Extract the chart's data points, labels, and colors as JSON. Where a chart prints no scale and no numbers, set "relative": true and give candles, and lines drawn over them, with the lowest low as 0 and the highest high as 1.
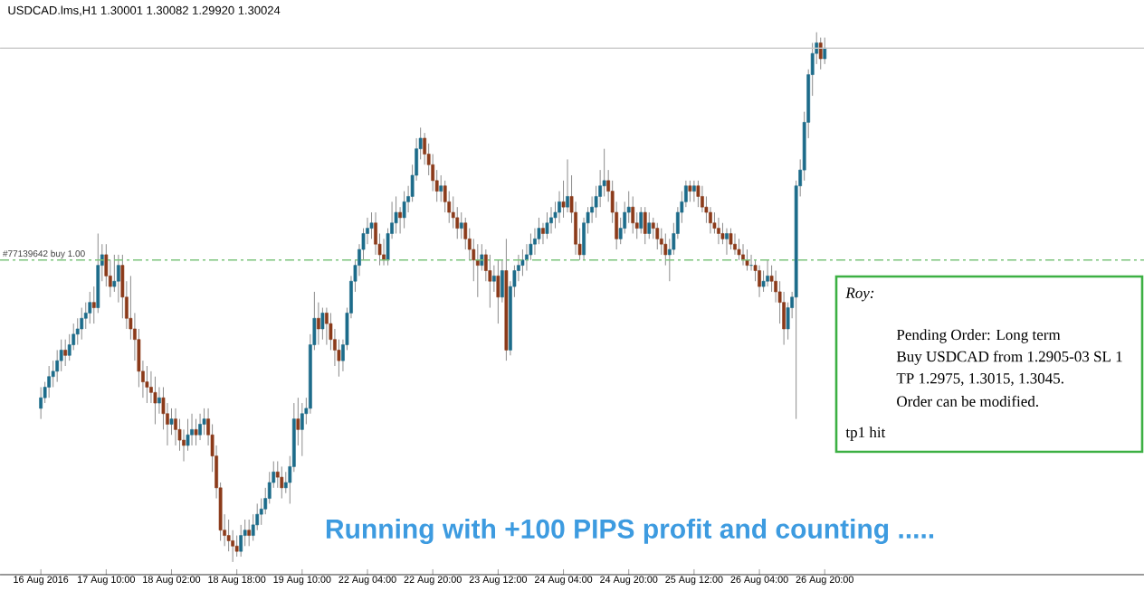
{
  "chart_data": {
    "type": "candlestick",
    "title": "USDCAD.lms,H1 1.30001 1.30082 1.29920 1.30024",
    "relative": true,
    "tick_labels": "x",
    "colors": [
      "#1c6b8a",
      "#1c6b8a",
      "#1c6b8a",
      "#1c6b8a",
      "#1c6b8a",
      "#1c6b8a",
      "#8b3a1a",
      "#1c6b8a",
      "#1c6b8a",
      "#1c6b8a",
      "#1c6b8a",
      "#1c6b8a",
      "#1c6b8a",
      "#8b3a1a",
      "#1c6b8a",
      "#1c6b8a",
      "#8b3a1a",
      "#8b3a1a",
      "#1c6b8a",
      "#1c6b8a",
      "#8b3a1a",
      "#8b3a1a",
      "#8b3a1a",
      "#8b3a1a",
      "#8b3a1a",
      "#8b3a1a",
      "#8b3a1a",
      "#8b3a1a",
      "#8b3a1a",
      "#1c6b8a",
      "#8b3a1a",
      "#8b3a1a",
      "#1c6b8a",
      "#8b3a1a",
      "#8b3a1a",
      "#8b3a1a",
      "#1c6b8a",
      "#1c6b8a",
      "#8b3a1a",
      "#1c6b8a",
      "#1c6b8a",
      "#8b3a1a",
      "#8b3a1a",
      "#8b3a1a",
      "#8b3a1a",
      "#8b3a1a",
      "#8b3a1a",
      "#8b3a1a",
      "#8b3a1a",
      "#1c6b8a",
      "#1c6b8a",
      "#8b3a1a",
      "#1c6b8a",
      "#1c6b8a",
      "#1c6b8a",
      "#1c6b8a",
      "#1c6b8a",
      "#1c6b8a",
      "#8b3a1a",
      "#8b3a1a",
      "#1c6b8a",
      "#1c6b8a",
      "#1c6b8a",
      "#8b3a1a",
      "#1c6b8a",
      "#1c6b8a",
      "#1c6b8a",
      "#1c6b8a",
      "#8b3a1a",
      "#1c6b8a",
      "#8b3a1a",
      "#8b3a1a",
      "#8b3a1a",
      "#8b3a1a",
      "#1c6b8a",
      "#1c6b8a",
      "#1c6b8a",
      "#1c6b8a",
      "#1c6b8a",
      "#1c6b8a",
      "#1c6b8a",
      "#1c6b8a",
      "#8b3a1a",
      "#8b3a1a",
      "#8b3a1a",
      "#1c6b8a",
      "#1c6b8a",
      "#1c6b8a",
      "#8b3a1a",
      "#1c6b8a",
      "#1c6b8a",
      "#1c6b8a",
      "#1c6b8a",
      "#1c6b8a",
      "#8b3a1a",
      "#8b3a1a",
      "#8b3a1a",
      "#8b3a1a",
      "#1c6b8a",
      "#8b3a1a",
      "#8b3a1a",
      "#8b3a1a",
      "#8b3a1a",
      "#1c6b8a",
      "#8b3a1a",
      "#8b3a1a",
      "#8b3a1a",
      "#8b3a1a",
      "#1c6b8a",
      "#8b3a1a",
      "#8b3a1a",
      "#1c6b8a",
      "#8b3a1a",
      "#1c6b8a",
      "#8b3a1a",
      "#1c6b8a",
      "#1c6b8a",
      "#1c6b8a",
      "#1c6b8a",
      "#1c6b8a",
      "#1c6b8a",
      "#1c6b8a",
      "#1c6b8a",
      "#8b3a1a",
      "#1c6b8a",
      "#1c6b8a",
      "#1c6b8a",
      "#1c6b8a",
      "#8b3a1a",
      "#1c6b8a",
      "#8b3a1a",
      "#8b3a1a",
      "#8b3a1a",
      "#1c6b8a",
      "#1c6b8a",
      "#1c6b8a",
      "#1c6b8a",
      "#1c6b8a",
      "#1c6b8a",
      "#8b3a1a",
      "#8b3a1a",
      "#8b3a1a",
      "#1c6b8a",
      "#1c6b8a",
      "#1c6b8a",
      "#8b3a1a",
      "#8b3a1a",
      "#1c6b8a",
      "#8b3a1a",
      "#1c6b8a",
      "#8b3a1a",
      "#8b3a1a",
      "#8b3a1a",
      "#8b3a1a",
      "#1c6b8a",
      "#1c6b8a",
      "#1c6b8a",
      "#1c6b8a",
      "#1c6b8a",
      "#8b3a1a",
      "#1c6b8a",
      "#8b3a1a",
      "#8b3a1a",
      "#8b3a1a",
      "#8b3a1a",
      "#8b3a1a",
      "#8b3a1a",
      "#8b3a1a",
      "#1c6b8a",
      "#8b3a1a",
      "#8b3a1a",
      "#8b3a1a",
      "#8b3a1a",
      "#8b3a1a",
      "#1c6b8a",
      "#8b3a1a",
      "#8b3a1a",
      "#1c6b8a",
      "#1c6b8a",
      "#8b3a1a",
      "#8b3a1a",
      "#8b3a1a",
      "#8b3a1a",
      "#1c6b8a",
      "#1c6b8a",
      "#1c6b8a",
      "#1c6b8a",
      "#1c6b8a",
      "#1c6b8a",
      "#1c6b8a",
      "#1c6b8a",
      "#8b3a1a",
      "#1c6b8a"
    ],
    "categories": [
      "16 Aug 2016",
      null,
      null,
      null,
      null,
      null,
      null,
      null,
      null,
      null,
      null,
      null,
      null,
      null,
      null,
      null,
      "17 Aug 10:00",
      null,
      null,
      null,
      null,
      null,
      null,
      null,
      null,
      null,
      null,
      null,
      null,
      null,
      null,
      null,
      "18 Aug 02:00",
      null,
      null,
      null,
      null,
      null,
      null,
      null,
      null,
      null,
      null,
      null,
      null,
      null,
      null,
      null,
      "18 Aug 18:00",
      null,
      null,
      null,
      null,
      null,
      null,
      null,
      null,
      null,
      null,
      null,
      null,
      null,
      null,
      null,
      "19 Aug 10:00",
      null,
      null,
      null,
      null,
      null,
      null,
      null,
      null,
      null,
      null,
      null,
      null,
      null,
      null,
      null,
      "22 Aug 04:00",
      null,
      null,
      null,
      null,
      null,
      null,
      null,
      null,
      null,
      null,
      null,
      null,
      null,
      null,
      null,
      "22 Aug 20:00",
      null,
      null,
      null,
      null,
      null,
      null,
      null,
      null,
      null,
      null,
      null,
      null,
      null,
      null,
      null,
      "23 Aug 12:00",
      null,
      null,
      null,
      null,
      null,
      null,
      null,
      null,
      null,
      null,
      null,
      null,
      null,
      null,
      null,
      "24 Aug 04:00",
      null,
      null,
      null,
      null,
      null,
      null,
      null,
      null,
      null,
      null,
      null,
      null,
      null,
      null,
      null,
      "24 Aug 20:00",
      null,
      null,
      null,
      null,
      null,
      null,
      null,
      null,
      null,
      null,
      null,
      null,
      null,
      null,
      null,
      "25 Aug 12:00",
      null,
      null,
      null,
      null,
      null,
      null,
      null,
      null,
      null,
      null,
      null,
      null,
      null,
      null,
      null,
      "26 Aug 04:00",
      null,
      null,
      null,
      null,
      null,
      null,
      null,
      null,
      null,
      null,
      null,
      null,
      null,
      null,
      null,
      "26 Aug 20:00"
    ],
    "ohlc": [
      [
        0.29,
        0.33,
        0.27,
        0.31
      ],
      [
        0.31,
        0.34,
        0.3,
        0.33
      ],
      [
        0.33,
        0.37,
        0.31,
        0.35
      ],
      [
        0.35,
        0.38,
        0.33,
        0.36
      ],
      [
        0.36,
        0.4,
        0.34,
        0.38
      ],
      [
        0.38,
        0.42,
        0.36,
        0.4
      ],
      [
        0.4,
        0.42,
        0.37,
        0.39
      ],
      [
        0.39,
        0.43,
        0.38,
        0.41
      ],
      [
        0.41,
        0.45,
        0.4,
        0.43
      ],
      [
        0.43,
        0.46,
        0.41,
        0.44
      ],
      [
        0.44,
        0.48,
        0.42,
        0.46
      ],
      [
        0.46,
        0.49,
        0.44,
        0.47
      ],
      [
        0.47,
        0.51,
        0.45,
        0.49
      ],
      [
        0.49,
        0.52,
        0.45,
        0.48
      ],
      [
        0.48,
        0.62,
        0.47,
        0.56
      ],
      [
        0.56,
        0.6,
        0.53,
        0.58
      ],
      [
        0.58,
        0.6,
        0.52,
        0.54
      ],
      [
        0.54,
        0.57,
        0.5,
        0.52
      ],
      [
        0.52,
        0.58,
        0.51,
        0.53
      ],
      [
        0.53,
        0.58,
        0.49,
        0.56
      ],
      [
        0.56,
        0.58,
        0.46,
        0.5
      ],
      [
        0.5,
        0.53,
        0.44,
        0.46
      ],
      [
        0.46,
        0.54,
        0.42,
        0.44
      ],
      [
        0.44,
        0.47,
        0.38,
        0.42
      ],
      [
        0.42,
        0.44,
        0.33,
        0.36
      ],
      [
        0.36,
        0.38,
        0.31,
        0.34
      ],
      [
        0.34,
        0.37,
        0.3,
        0.33
      ],
      [
        0.33,
        0.36,
        0.3,
        0.32
      ],
      [
        0.32,
        0.35,
        0.26,
        0.3
      ],
      [
        0.3,
        0.33,
        0.28,
        0.31
      ],
      [
        0.31,
        0.33,
        0.25,
        0.28
      ],
      [
        0.28,
        0.3,
        0.22,
        0.26
      ],
      [
        0.26,
        0.29,
        0.24,
        0.27
      ],
      [
        0.27,
        0.29,
        0.22,
        0.25
      ],
      [
        0.25,
        0.27,
        0.21,
        0.23
      ],
      [
        0.23,
        0.25,
        0.19,
        0.22
      ],
      [
        0.22,
        0.27,
        0.21,
        0.24
      ],
      [
        0.24,
        0.28,
        0.22,
        0.25
      ],
      [
        0.25,
        0.27,
        0.22,
        0.24
      ],
      [
        0.24,
        0.28,
        0.23,
        0.26
      ],
      [
        0.26,
        0.29,
        0.24,
        0.27
      ],
      [
        0.27,
        0.29,
        0.22,
        0.24
      ],
      [
        0.24,
        0.26,
        0.17,
        0.2
      ],
      [
        0.2,
        0.22,
        0.12,
        0.14
      ],
      [
        0.14,
        0.15,
        0.04,
        0.06
      ],
      [
        0.06,
        0.09,
        0.03,
        0.05
      ],
      [
        0.05,
        0.08,
        0.02,
        0.04
      ],
      [
        0.04,
        0.06,
        0.0,
        0.03
      ],
      [
        0.03,
        0.05,
        0.01,
        0.02
      ],
      [
        0.02,
        0.07,
        0.01,
        0.05
      ],
      [
        0.05,
        0.08,
        0.03,
        0.06
      ],
      [
        0.06,
        0.08,
        0.03,
        0.05
      ],
      [
        0.05,
        0.09,
        0.04,
        0.07
      ],
      [
        0.07,
        0.11,
        0.06,
        0.09
      ],
      [
        0.09,
        0.12,
        0.07,
        0.1
      ],
      [
        0.1,
        0.14,
        0.09,
        0.12
      ],
      [
        0.12,
        0.17,
        0.11,
        0.15
      ],
      [
        0.15,
        0.19,
        0.14,
        0.17
      ],
      [
        0.17,
        0.19,
        0.14,
        0.16
      ],
      [
        0.16,
        0.18,
        0.12,
        0.14
      ],
      [
        0.14,
        0.17,
        0.13,
        0.15
      ],
      [
        0.15,
        0.2,
        0.11,
        0.18
      ],
      [
        0.18,
        0.3,
        0.17,
        0.27
      ],
      [
        0.27,
        0.31,
        0.22,
        0.25
      ],
      [
        0.25,
        0.3,
        0.2,
        0.28
      ],
      [
        0.28,
        0.31,
        0.26,
        0.29
      ],
      [
        0.29,
        0.43,
        0.28,
        0.41
      ],
      [
        0.41,
        0.51,
        0.4,
        0.46
      ],
      [
        0.46,
        0.49,
        0.41,
        0.44
      ],
      [
        0.44,
        0.48,
        0.42,
        0.47
      ],
      [
        0.47,
        0.48,
        0.41,
        0.45
      ],
      [
        0.45,
        0.47,
        0.4,
        0.42
      ],
      [
        0.42,
        0.44,
        0.37,
        0.4
      ],
      [
        0.4,
        0.42,
        0.35,
        0.38
      ],
      [
        0.38,
        0.42,
        0.36,
        0.41
      ],
      [
        0.41,
        0.48,
        0.4,
        0.47
      ],
      [
        0.47,
        0.54,
        0.46,
        0.53
      ],
      [
        0.53,
        0.57,
        0.51,
        0.56
      ],
      [
        0.56,
        0.6,
        0.54,
        0.59
      ],
      [
        0.59,
        0.63,
        0.57,
        0.62
      ],
      [
        0.62,
        0.65,
        0.6,
        0.63
      ],
      [
        0.63,
        0.66,
        0.61,
        0.64
      ],
      [
        0.64,
        0.66,
        0.58,
        0.6
      ],
      [
        0.6,
        0.62,
        0.56,
        0.58
      ],
      [
        0.58,
        0.61,
        0.56,
        0.57
      ],
      [
        0.57,
        0.63,
        0.56,
        0.62
      ],
      [
        0.62,
        0.68,
        0.61,
        0.64
      ],
      [
        0.64,
        0.69,
        0.62,
        0.66
      ],
      [
        0.66,
        0.67,
        0.62,
        0.65
      ],
      [
        0.65,
        0.7,
        0.63,
        0.68
      ],
      [
        0.68,
        0.71,
        0.66,
        0.69
      ],
      [
        0.69,
        0.75,
        0.68,
        0.73
      ],
      [
        0.73,
        0.8,
        0.72,
        0.78
      ],
      [
        0.78,
        0.82,
        0.76,
        0.8
      ],
      [
        0.8,
        0.81,
        0.75,
        0.77
      ],
      [
        0.77,
        0.79,
        0.73,
        0.75
      ],
      [
        0.75,
        0.77,
        0.7,
        0.72
      ],
      [
        0.72,
        0.74,
        0.68,
        0.7
      ],
      [
        0.7,
        0.73,
        0.68,
        0.71
      ],
      [
        0.71,
        0.72,
        0.66,
        0.68
      ],
      [
        0.68,
        0.7,
        0.64,
        0.66
      ],
      [
        0.66,
        0.69,
        0.63,
        0.65
      ],
      [
        0.65,
        0.67,
        0.61,
        0.63
      ],
      [
        0.63,
        0.66,
        0.61,
        0.64
      ],
      [
        0.64,
        0.65,
        0.59,
        0.61
      ],
      [
        0.61,
        0.63,
        0.57,
        0.59
      ],
      [
        0.59,
        0.61,
        0.53,
        0.57
      ],
      [
        0.57,
        0.6,
        0.5,
        0.56
      ],
      [
        0.56,
        0.6,
        0.55,
        0.58
      ],
      [
        0.58,
        0.59,
        0.53,
        0.55
      ],
      [
        0.55,
        0.58,
        0.48,
        0.53
      ],
      [
        0.53,
        0.56,
        0.51,
        0.54
      ],
      [
        0.54,
        0.57,
        0.45,
        0.5
      ],
      [
        0.5,
        0.57,
        0.49,
        0.55
      ],
      [
        0.55,
        0.61,
        0.38,
        0.4
      ],
      [
        0.4,
        0.53,
        0.39,
        0.52
      ],
      [
        0.52,
        0.56,
        0.5,
        0.55
      ],
      [
        0.55,
        0.58,
        0.53,
        0.56
      ],
      [
        0.56,
        0.59,
        0.54,
        0.57
      ],
      [
        0.57,
        0.6,
        0.55,
        0.58
      ],
      [
        0.58,
        0.62,
        0.57,
        0.6
      ],
      [
        0.6,
        0.63,
        0.58,
        0.61
      ],
      [
        0.61,
        0.65,
        0.6,
        0.63
      ],
      [
        0.63,
        0.64,
        0.6,
        0.62
      ],
      [
        0.62,
        0.66,
        0.61,
        0.64
      ],
      [
        0.64,
        0.67,
        0.62,
        0.65
      ],
      [
        0.65,
        0.68,
        0.63,
        0.66
      ],
      [
        0.66,
        0.7,
        0.64,
        0.68
      ],
      [
        0.68,
        0.72,
        0.65,
        0.67
      ],
      [
        0.67,
        0.76,
        0.66,
        0.69
      ],
      [
        0.69,
        0.73,
        0.64,
        0.66
      ],
      [
        0.66,
        0.68,
        0.58,
        0.6
      ],
      [
        0.6,
        0.63,
        0.57,
        0.58
      ],
      [
        0.58,
        0.65,
        0.57,
        0.64
      ],
      [
        0.64,
        0.67,
        0.62,
        0.66
      ],
      [
        0.66,
        0.69,
        0.64,
        0.67
      ],
      [
        0.67,
        0.71,
        0.65,
        0.69
      ],
      [
        0.69,
        0.74,
        0.67,
        0.71
      ],
      [
        0.71,
        0.78,
        0.69,
        0.72
      ],
      [
        0.72,
        0.74,
        0.68,
        0.7
      ],
      [
        0.7,
        0.72,
        0.64,
        0.66
      ],
      [
        0.66,
        0.68,
        0.59,
        0.61
      ],
      [
        0.61,
        0.65,
        0.6,
        0.63
      ],
      [
        0.63,
        0.68,
        0.62,
        0.66
      ],
      [
        0.66,
        0.7,
        0.64,
        0.67
      ],
      [
        0.67,
        0.69,
        0.62,
        0.64
      ],
      [
        0.64,
        0.66,
        0.61,
        0.63
      ],
      [
        0.63,
        0.67,
        0.62,
        0.66
      ],
      [
        0.66,
        0.67,
        0.6,
        0.62
      ],
      [
        0.62,
        0.66,
        0.61,
        0.64
      ],
      [
        0.64,
        0.65,
        0.61,
        0.63
      ],
      [
        0.63,
        0.64,
        0.59,
        0.61
      ],
      [
        0.61,
        0.63,
        0.58,
        0.6
      ],
      [
        0.6,
        0.62,
        0.56,
        0.58
      ],
      [
        0.58,
        0.61,
        0.53,
        0.59
      ],
      [
        0.59,
        0.64,
        0.58,
        0.62
      ],
      [
        0.62,
        0.67,
        0.61,
        0.66
      ],
      [
        0.66,
        0.7,
        0.64,
        0.68
      ],
      [
        0.68,
        0.72,
        0.67,
        0.71
      ],
      [
        0.71,
        0.72,
        0.68,
        0.7
      ],
      [
        0.7,
        0.72,
        0.68,
        0.71
      ],
      [
        0.71,
        0.72,
        0.67,
        0.69
      ],
      [
        0.69,
        0.71,
        0.66,
        0.67
      ],
      [
        0.67,
        0.69,
        0.64,
        0.66
      ],
      [
        0.66,
        0.67,
        0.62,
        0.64
      ],
      [
        0.64,
        0.66,
        0.62,
        0.63
      ],
      [
        0.63,
        0.65,
        0.6,
        0.62
      ],
      [
        0.62,
        0.64,
        0.6,
        0.61
      ],
      [
        0.61,
        0.63,
        0.58,
        0.62
      ],
      [
        0.62,
        0.63,
        0.59,
        0.6
      ],
      [
        0.6,
        0.62,
        0.58,
        0.59
      ],
      [
        0.59,
        0.61,
        0.57,
        0.58
      ],
      [
        0.58,
        0.6,
        0.56,
        0.57
      ],
      [
        0.57,
        0.59,
        0.55,
        0.56
      ],
      [
        0.56,
        0.58,
        0.55,
        0.56
      ],
      [
        0.56,
        0.57,
        0.53,
        0.55
      ],
      [
        0.55,
        0.56,
        0.5,
        0.52
      ],
      [
        0.52,
        0.55,
        0.51,
        0.53
      ],
      [
        0.53,
        0.57,
        0.52,
        0.54
      ],
      [
        0.54,
        0.56,
        0.51,
        0.53
      ],
      [
        0.53,
        0.55,
        0.49,
        0.51
      ],
      [
        0.51,
        0.53,
        0.45,
        0.49
      ],
      [
        0.49,
        0.51,
        0.41,
        0.44
      ],
      [
        0.44,
        0.49,
        0.42,
        0.48
      ],
      [
        0.48,
        0.51,
        0.46,
        0.5
      ],
      [
        0.5,
        0.72,
        0.27,
        0.71
      ],
      [
        0.71,
        0.76,
        0.69,
        0.74
      ],
      [
        0.74,
        0.85,
        0.72,
        0.83
      ],
      [
        0.83,
        0.93,
        0.8,
        0.92
      ],
      [
        0.92,
        0.98,
        0.88,
        0.96
      ],
      [
        0.96,
        1.0,
        0.94,
        0.98
      ],
      [
        0.98,
        0.99,
        0.93,
        0.95
      ],
      [
        0.95,
        0.99,
        0.94,
        0.97
      ]
    ],
    "ref_lines": [
      {
        "axis": "y",
        "value": 0.57,
        "label": "#77139642 buy 1.00",
        "color": "#7cc47c",
        "line_style": "dashed"
      },
      {
        "axis": "y",
        "value": 0.97,
        "color": "#c8c8c8",
        "line_style": "solid"
      }
    ],
    "annotations": [
      "Running with +100 PIPS profit and counting .....",
      "Roy:",
      "Pending Order: Long term",
      "Buy USDCAD from 1.2905-03 SL 1",
      "TP 1.2975, 1.3015, 1.3045.",
      "Order can be modified.",
      "tp1 hit"
    ]
  }
}
